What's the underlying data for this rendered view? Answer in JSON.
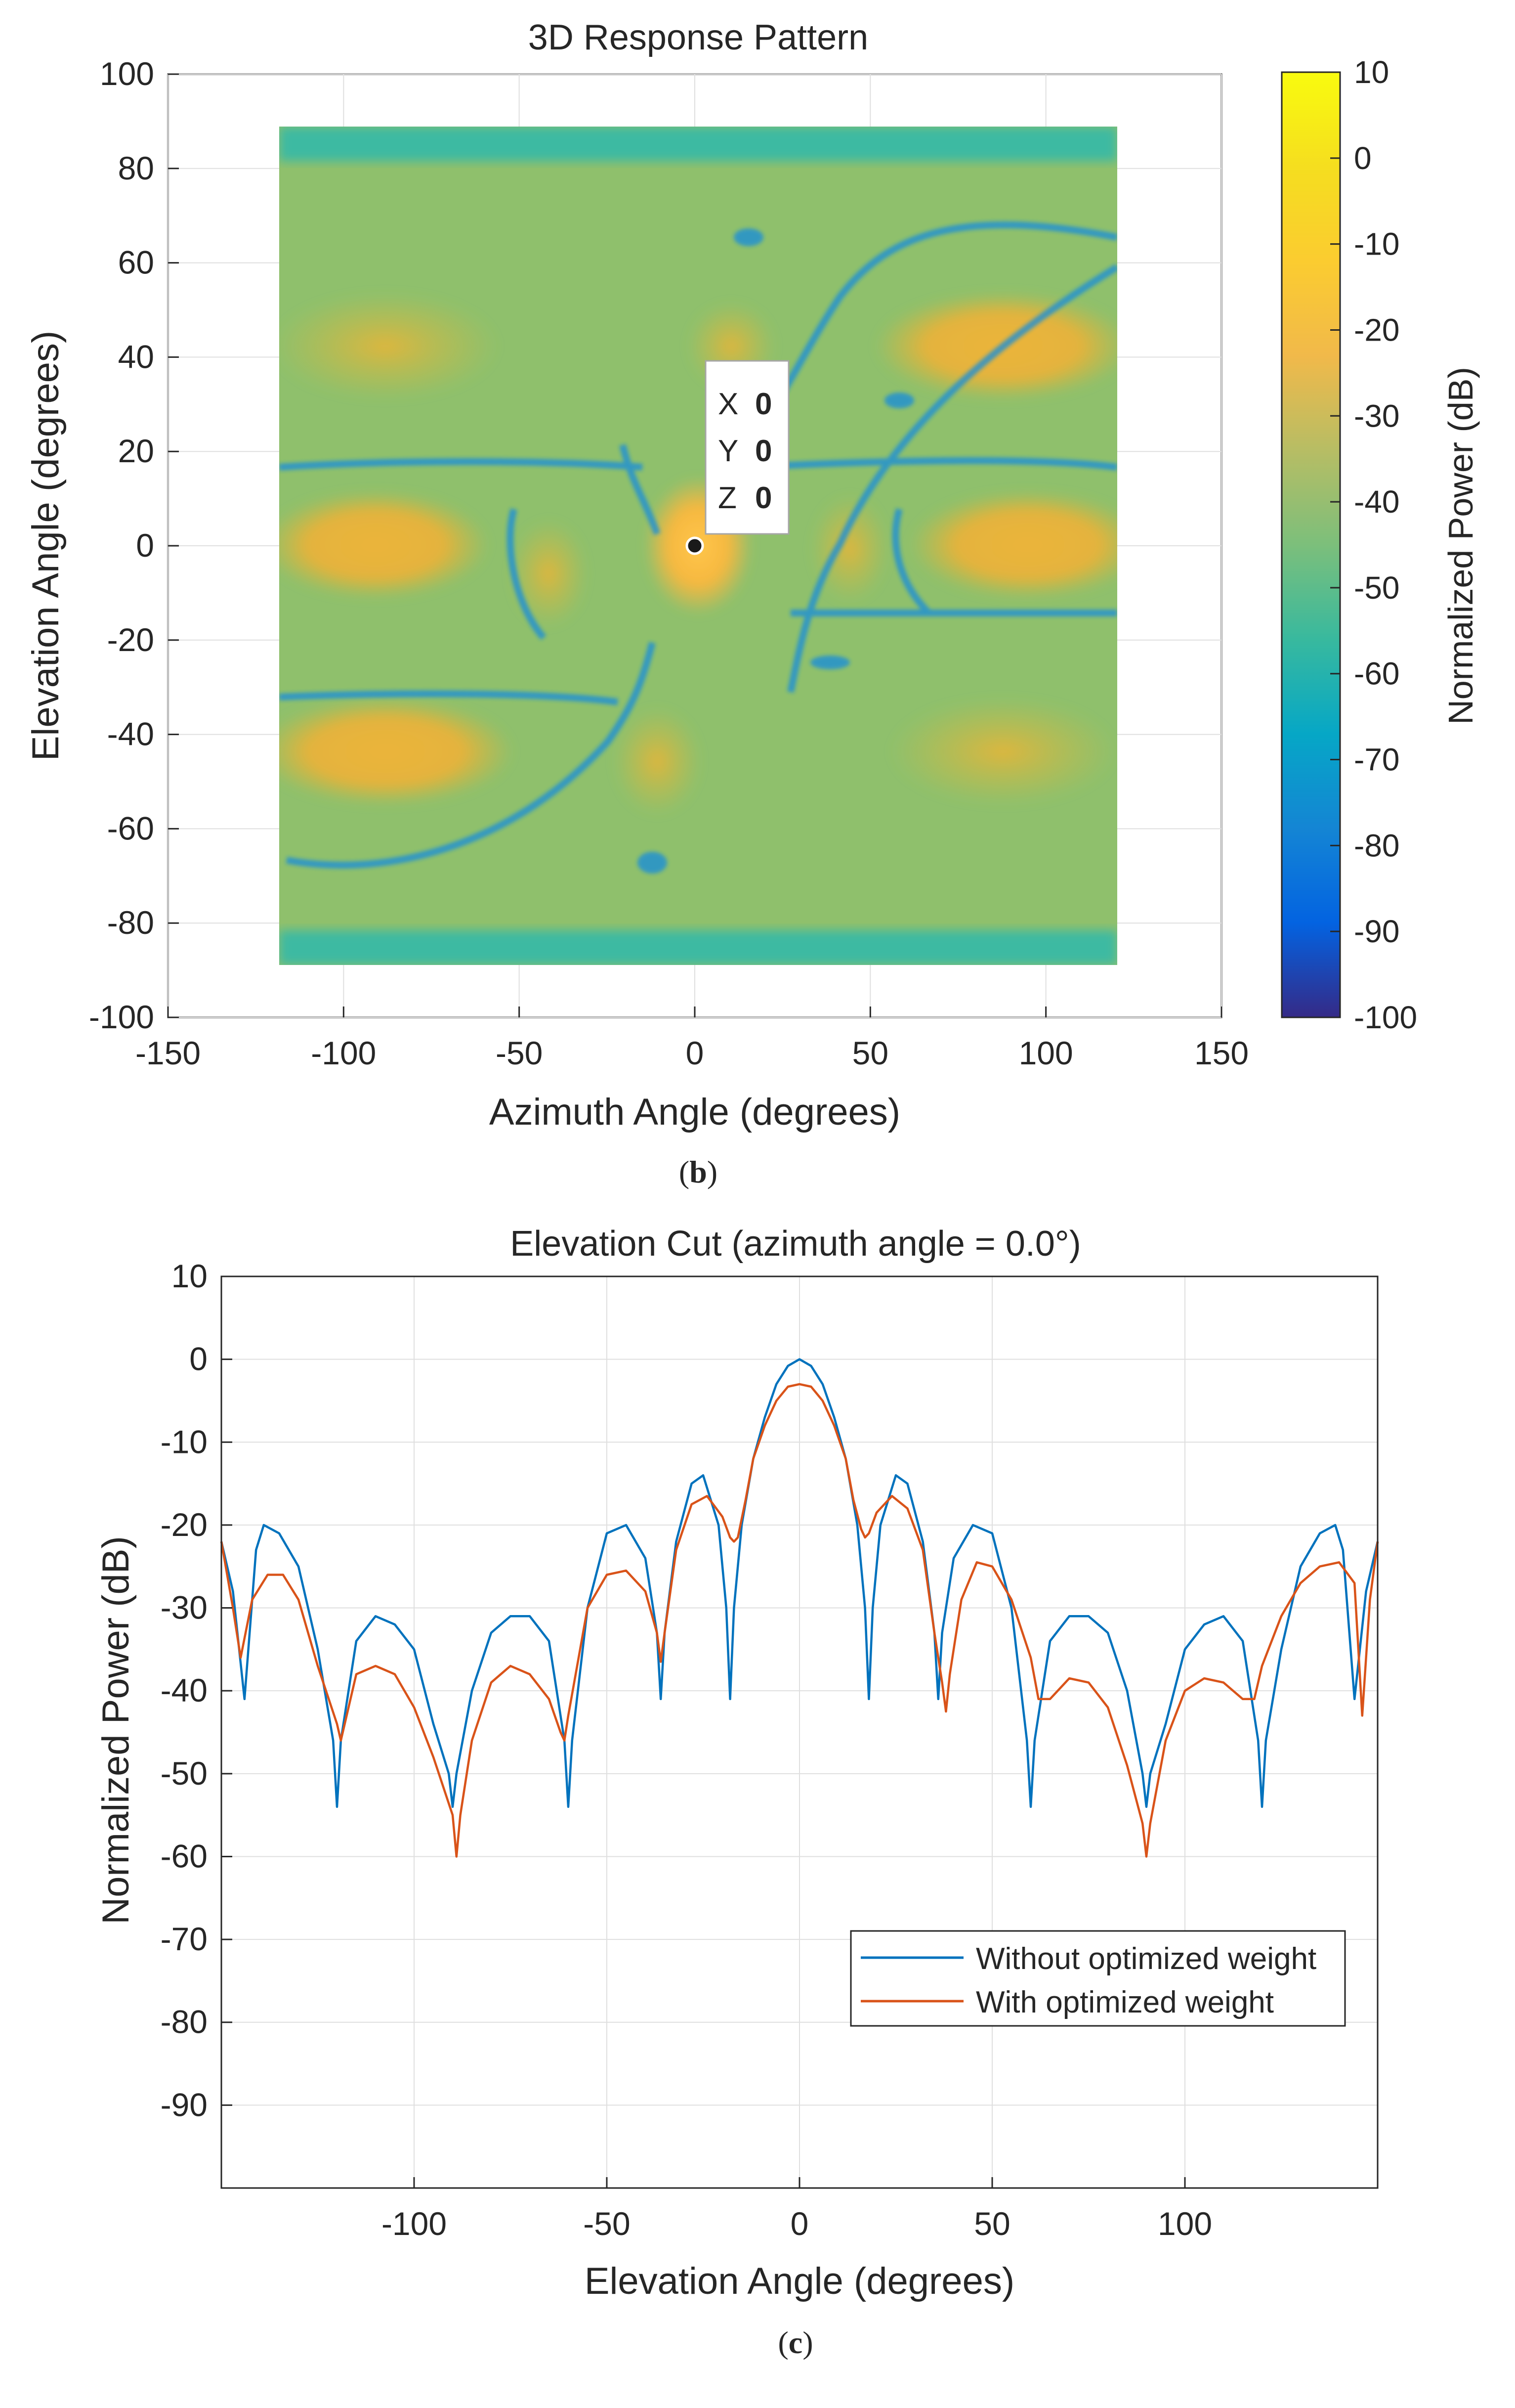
{
  "figure_b": {
    "caption_letter": "b",
    "caption_open": "(",
    "caption_close": ")"
  },
  "figure_c": {
    "caption_letter": "c",
    "caption_open": "(",
    "caption_close": ")"
  },
  "datatip": {
    "x_label": "X",
    "x_value": "0",
    "y_label": "Y",
    "y_value": "0",
    "z_label": "Z",
    "z_value": "0"
  },
  "colors": {
    "series_1": "#0072BD",
    "series_2": "#D95319",
    "datatip_value": "#0072BD",
    "grid": "#DFDFDF",
    "axis": "#262626"
  },
  "chart_data": [
    {
      "type": "heatmap",
      "title": "3D Response Pattern",
      "xlabel": "Azimuth Angle (degrees)",
      "ylabel": "Elevation Angle (degrees)",
      "xlim": [
        -150,
        150
      ],
      "ylim": [
        -100,
        100
      ],
      "xticks": [
        -150,
        -100,
        -50,
        0,
        50,
        100,
        150
      ],
      "yticks": [
        -100,
        -80,
        -60,
        -40,
        -20,
        0,
        20,
        40,
        60,
        80,
        100
      ],
      "data_extent": {
        "azimuth": [
          -120,
          120
        ],
        "elevation": [
          -89,
          89
        ]
      },
      "colorbar": {
        "label": "Normalized Power (dB)",
        "range": [
          -100,
          10
        ],
        "ticks": [
          10,
          0,
          -10,
          -20,
          -30,
          -40,
          -50,
          -60,
          -70,
          -80,
          -90,
          -100
        ],
        "colormap": "parula"
      },
      "marker": {
        "azimuth": 0,
        "elevation": 0,
        "power": 0
      },
      "grid": true
    },
    {
      "type": "line",
      "title": "Elevation Cut (azimuth angle = 0.0°)",
      "xlabel": "Elevation Angle (degrees)",
      "ylabel": "Normalized Power (dB)",
      "xlim": [
        -150,
        150
      ],
      "ylim": [
        -100,
        10
      ],
      "xticks": [
        -100,
        -50,
        0,
        50,
        100
      ],
      "yticks": [
        10,
        0,
        -10,
        -20,
        -30,
        -40,
        -50,
        -60,
        -70,
        -80,
        -90
      ],
      "grid": true,
      "legend_position": "bottom-right",
      "series": [
        {
          "name": "Without optimized weight",
          "x": [
            -150,
            -147,
            -144,
            -141,
            -139,
            -135,
            -130,
            -125,
            -121,
            -120,
            -119,
            -115,
            -110,
            -105,
            -100,
            -95,
            -91,
            -90,
            -89,
            -85,
            -80,
            -75,
            -70,
            -65,
            -61,
            -60,
            -59,
            -55,
            -50,
            -45,
            -40,
            -37,
            -36,
            -35,
            -32,
            -28,
            -25,
            -21,
            -19,
            -18,
            -17,
            -15,
            -12,
            -9,
            -6,
            -3,
            0,
            3,
            6,
            9,
            12,
            15,
            17,
            18,
            19,
            21,
            25,
            28,
            32,
            35,
            36,
            37,
            40,
            45,
            50,
            55,
            59,
            60,
            61,
            65,
            70,
            75,
            80,
            85,
            89,
            90,
            91,
            95,
            100,
            105,
            110,
            115,
            119,
            120,
            121,
            125,
            130,
            135,
            139,
            141,
            144,
            147,
            150
          ],
          "y": [
            -22,
            -28,
            -41,
            -23,
            -20,
            -21,
            -25,
            -35,
            -46,
            -54,
            -46,
            -34,
            -31,
            -32,
            -35,
            -44,
            -50,
            -54,
            -50,
            -40,
            -33,
            -31,
            -31,
            -34,
            -46,
            -54,
            -46,
            -30,
            -21,
            -20,
            -24,
            -33,
            -41,
            -33,
            -22,
            -15,
            -14,
            -20,
            -30,
            -41,
            -30,
            -20,
            -12,
            -7,
            -3,
            -0.8,
            0,
            -0.8,
            -3,
            -7,
            -12,
            -20,
            -30,
            -41,
            -30,
            -20,
            -14,
            -15,
            -22,
            -33,
            -41,
            -33,
            -24,
            -20,
            -21,
            -30,
            -46,
            -54,
            -46,
            -34,
            -31,
            -31,
            -33,
            -40,
            -50,
            -54,
            -50,
            -44,
            -35,
            -32,
            -31,
            -34,
            -46,
            -54,
            -46,
            -35,
            -25,
            -21,
            -20,
            -23,
            -41,
            -28,
            -22
          ]
        },
        {
          "name": "With optimized weight",
          "x": [
            -150,
            -147,
            -145,
            -142,
            -138,
            -134,
            -130,
            -125,
            -120,
            -119,
            -118,
            -115,
            -110,
            -105,
            -100,
            -95,
            -90,
            -89,
            -88,
            -85,
            -80,
            -75,
            -70,
            -65,
            -62,
            -61,
            -60,
            -55,
            -50,
            -45,
            -40,
            -37,
            -36,
            -35,
            -32,
            -28,
            -24,
            -20,
            -18,
            -17,
            -16,
            -14,
            -12,
            -9,
            -6,
            -3,
            0,
            3,
            6,
            9,
            12,
            14,
            16,
            17,
            18,
            20,
            24,
            28,
            32,
            35,
            37,
            38,
            39,
            42,
            46,
            50,
            55,
            60,
            62,
            65,
            70,
            75,
            80,
            85,
            89,
            90,
            91,
            95,
            100,
            105,
            110,
            115,
            118,
            120,
            125,
            130,
            135,
            140,
            144,
            146,
            148,
            150
          ],
          "y": [
            -22,
            -30,
            -36,
            -29,
            -26,
            -26,
            -29,
            -37,
            -44,
            -46,
            -44,
            -38,
            -37,
            -38,
            -42,
            -48,
            -55,
            -60,
            -55,
            -46,
            -39,
            -37,
            -38,
            -41,
            -45,
            -46,
            -43,
            -30,
            -26,
            -25.5,
            -28,
            -33,
            -36.5,
            -33,
            -23,
            -17.5,
            -16.5,
            -19,
            -21.5,
            -22,
            -21.5,
            -17,
            -12,
            -8,
            -5,
            -3.3,
            -3,
            -3.3,
            -5,
            -8,
            -12,
            -17,
            -20.5,
            -21.5,
            -21,
            -18.5,
            -16.5,
            -18,
            -23,
            -33,
            -39,
            -42.5,
            -38,
            -29,
            -24.5,
            -25,
            -29,
            -36,
            -41,
            -41,
            -38.5,
            -39,
            -42,
            -49,
            -56,
            -60,
            -56,
            -46,
            -40,
            -38.5,
            -39,
            -41,
            -41,
            -37,
            -31,
            -27,
            -25,
            -24.5,
            -27,
            -43,
            -29,
            -22
          ]
        }
      ]
    }
  ]
}
